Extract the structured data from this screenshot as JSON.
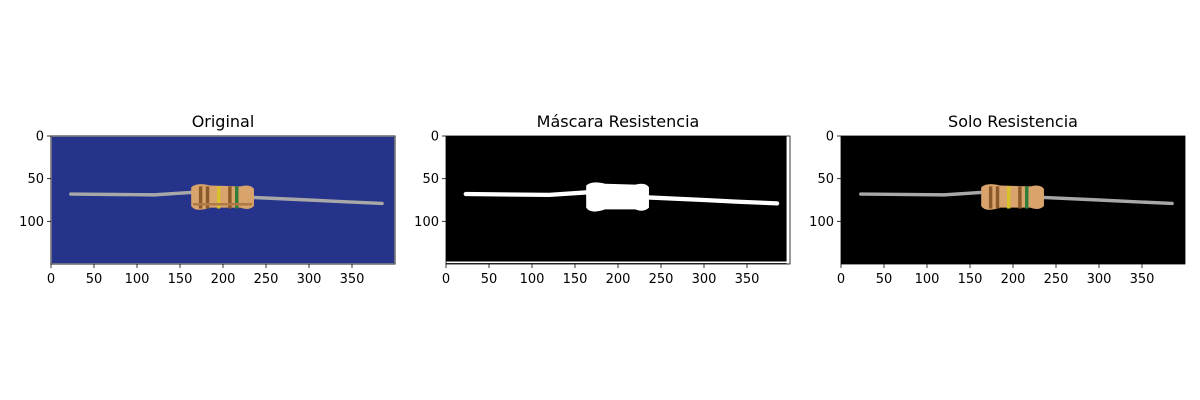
{
  "figure": {
    "panels": [
      {
        "id": "original",
        "title": "Original",
        "image": "original"
      },
      {
        "id": "mask",
        "title": "Máscara Resistencia",
        "image": "mask"
      },
      {
        "id": "masked",
        "title": "Solo Resistencia",
        "image": "masked"
      }
    ],
    "axes": {
      "xlim": [
        0,
        400
      ],
      "ylim": [
        150,
        0
      ],
      "x_ticks": [
        0,
        50,
        100,
        150,
        200,
        250,
        300,
        350
      ],
      "y_ticks": [
        0,
        50,
        100
      ]
    },
    "colors": {
      "background_blue": "#26338a",
      "mask_white": "#ffffff",
      "black": "#000000",
      "resistor_body": "#d9a36c",
      "wire": "#a8a8a8",
      "band_brown": "#8b5a2b",
      "band_yellow": "#d8c22a",
      "band_green": "#2e7d3a"
    }
  }
}
